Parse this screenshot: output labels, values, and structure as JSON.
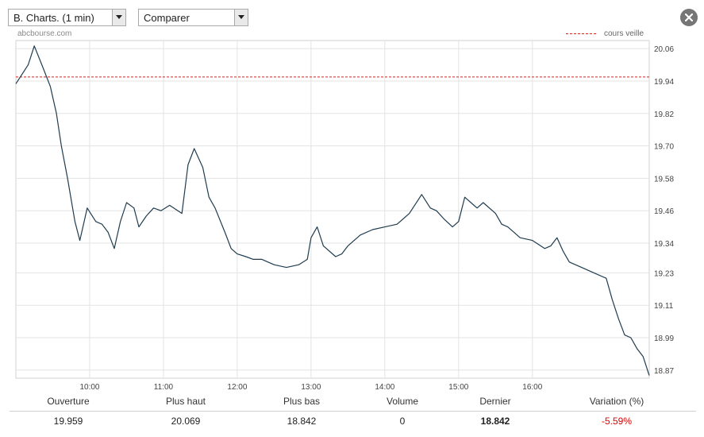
{
  "header": {
    "chart_select": "B. Charts. (1 min)",
    "compare_select": "Comparer"
  },
  "chart_header": {
    "source": "abcbourse.com",
    "legend_label": "cours veille"
  },
  "colors": {
    "price_line": "#1f3c4f",
    "reference_line": "#d22222",
    "variation_negative": "#e00000"
  },
  "chart_data": {
    "type": "line",
    "x_ticks": [
      "10:00",
      "11:00",
      "12:00",
      "13:00",
      "14:00",
      "15:00",
      "16:00"
    ],
    "y_ticks": [
      "20.06",
      "19.94",
      "19.82",
      "19.70",
      "19.58",
      "19.46",
      "19.34",
      "19.23",
      "19.11",
      "18.99",
      "18.87"
    ],
    "ylim": [
      18.84,
      20.09
    ],
    "xlim": [
      "09:00",
      "17:35"
    ],
    "reference": {
      "name": "cours veille",
      "value": 19.955
    },
    "grid": true,
    "legend_position": "top-right",
    "series": [
      {
        "x": [
          "09:00",
          "09:10",
          "09:15",
          "09:22",
          "09:28",
          "09:33",
          "09:37",
          "09:42",
          "09:48",
          "09:52",
          "09:58",
          "10:05",
          "10:10",
          "10:15",
          "10:20",
          "10:25",
          "10:30",
          "10:36",
          "10:40",
          "10:46",
          "10:52",
          "10:58",
          "11:05",
          "11:15",
          "11:20",
          "11:25",
          "11:32",
          "11:37",
          "11:42",
          "11:50",
          "11:55",
          "12:00",
          "12:07",
          "12:13",
          "12:20",
          "12:30",
          "12:40",
          "12:50",
          "12:57",
          "13:00",
          "13:05",
          "13:10",
          "13:20",
          "13:25",
          "13:30",
          "13:40",
          "13:50",
          "14:00",
          "14:10",
          "14:20",
          "14:30",
          "14:37",
          "14:42",
          "14:48",
          "14:55",
          "15:00",
          "15:05",
          "15:10",
          "15:15",
          "15:20",
          "15:30",
          "15:35",
          "15:40",
          "15:50",
          "16:00",
          "16:10",
          "16:15",
          "16:20",
          "16:25",
          "16:30",
          "16:40",
          "16:50",
          "17:00",
          "17:05",
          "17:10",
          "17:15",
          "17:20",
          "17:25",
          "17:30",
          "17:35"
        ],
        "y": [
          19.93,
          20.0,
          20.07,
          19.99,
          19.92,
          19.82,
          19.7,
          19.58,
          19.42,
          19.35,
          19.47,
          19.42,
          19.41,
          19.38,
          19.32,
          19.42,
          19.49,
          19.47,
          19.4,
          19.44,
          19.47,
          19.46,
          19.48,
          19.45,
          19.63,
          19.69,
          19.62,
          19.51,
          19.47,
          19.38,
          19.32,
          19.3,
          19.29,
          19.28,
          19.28,
          19.26,
          19.25,
          19.26,
          19.28,
          19.36,
          19.4,
          19.33,
          19.29,
          19.3,
          19.33,
          19.37,
          19.39,
          19.4,
          19.41,
          19.45,
          19.52,
          19.47,
          19.46,
          19.43,
          19.4,
          19.42,
          19.51,
          19.49,
          19.47,
          19.49,
          19.45,
          19.41,
          19.4,
          19.36,
          19.35,
          19.32,
          19.33,
          19.36,
          19.31,
          19.27,
          19.25,
          19.23,
          19.21,
          19.13,
          19.06,
          19.0,
          18.99,
          18.95,
          18.92,
          18.85
        ]
      }
    ]
  },
  "stats": {
    "headers": {
      "open": "Ouverture",
      "high": "Plus haut",
      "low": "Plus bas",
      "volume": "Volume",
      "last": "Dernier",
      "variation": "Variation (%)"
    },
    "values": {
      "open": "19.959",
      "high": "20.069",
      "low": "18.842",
      "volume": "0",
      "last": "18.842",
      "variation": "-5.59%"
    }
  }
}
